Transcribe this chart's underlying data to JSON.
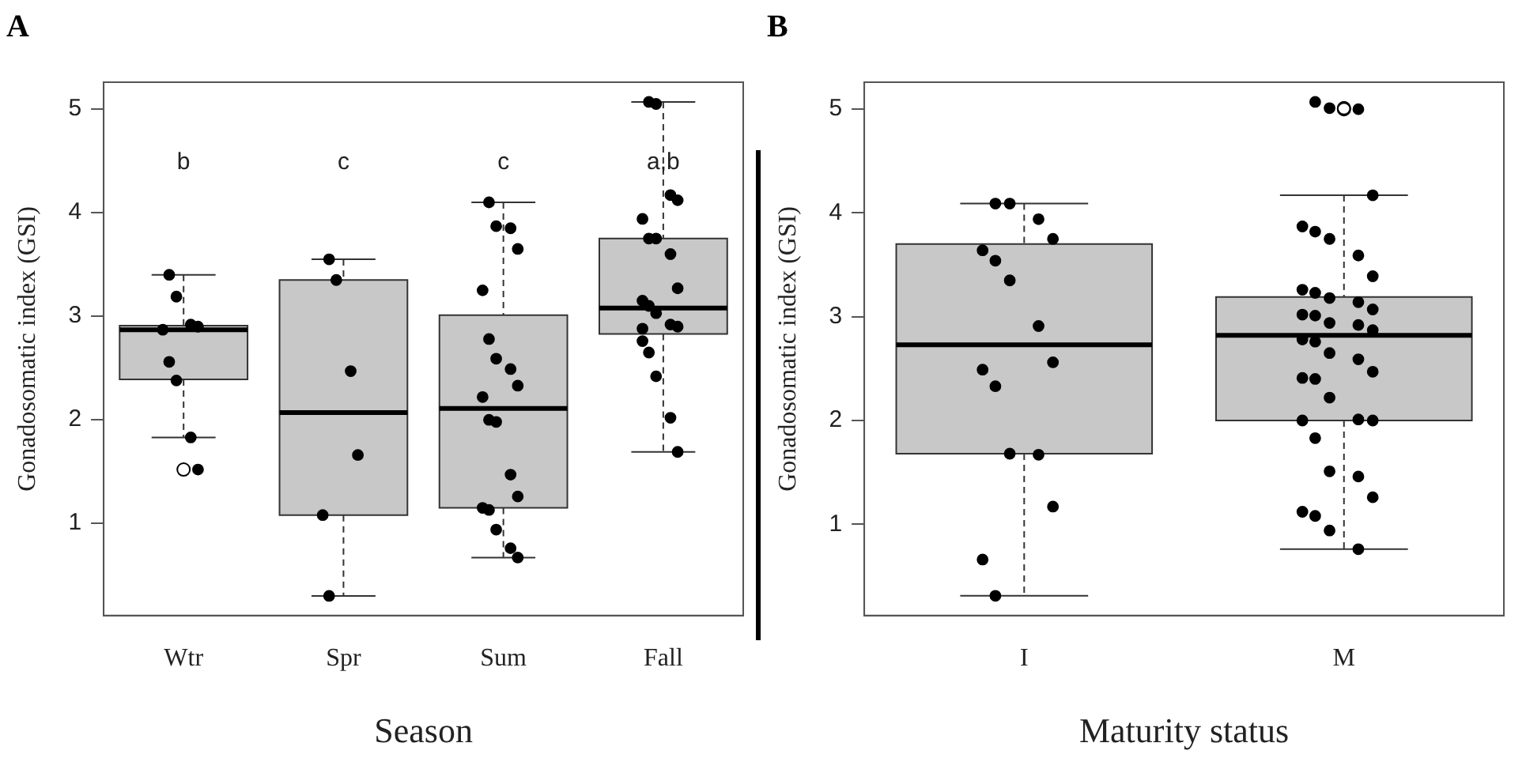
{
  "chart_data": [
    {
      "type": "box",
      "title": "A",
      "xlabel": "Season",
      "ylabel": "Gonadosomatic index (GSI)",
      "categories": [
        "Wtr",
        "Spr",
        "Sum",
        "Fall"
      ],
      "ylim": [
        0.11,
        5.26
      ],
      "yticks": [
        1,
        2,
        3,
        4,
        5
      ],
      "grid": false,
      "legend": false,
      "marker": "circle",
      "series": [
        {
          "type": "box",
          "color": "#c8c8c8",
          "boxes": [
            {
              "low": 1.83,
              "q1": 2.39,
              "median": 2.87,
              "q3": 2.91,
              "high": 3.4,
              "outliers": [
                1.52
              ]
            },
            {
              "low": 0.3,
              "q1": 1.08,
              "median": 2.07,
              "q3": 3.35,
              "high": 3.55
            },
            {
              "low": 0.67,
              "q1": 1.15,
              "median": 2.11,
              "q3": 3.01,
              "high": 4.1
            },
            {
              "low": 1.69,
              "q1": 2.83,
              "median": 3.08,
              "q3": 3.75,
              "high": 5.07
            }
          ]
        },
        {
          "type": "scatter",
          "color": "#000000",
          "x": [
            "Wtr",
            "Wtr",
            "Wtr",
            "Wtr",
            "Wtr",
            "Wtr",
            "Wtr",
            "Wtr",
            "Wtr",
            "Spr",
            "Spr",
            "Spr",
            "Spr",
            "Spr",
            "Spr",
            "Sum",
            "Sum",
            "Sum",
            "Sum",
            "Sum",
            "Sum",
            "Sum",
            "Sum",
            "Sum",
            "Sum",
            "Sum",
            "Sum",
            "Sum",
            "Sum",
            "Sum",
            "Sum",
            "Sum",
            "Sum",
            "Sum",
            "Fall",
            "Fall",
            "Fall",
            "Fall",
            "Fall",
            "Fall",
            "Fall",
            "Fall",
            "Fall",
            "Fall",
            "Fall",
            "Fall",
            "Fall",
            "Fall",
            "Fall",
            "Fall",
            "Fall",
            "Fall",
            "Fall",
            "Fall"
          ],
          "values": [
            3.4,
            3.19,
            2.92,
            2.9,
            2.87,
            2.56,
            2.38,
            1.83,
            1.52,
            3.55,
            3.35,
            2.47,
            1.66,
            1.08,
            0.3,
            4.1,
            3.87,
            3.85,
            3.65,
            3.25,
            2.78,
            2.59,
            2.49,
            2.33,
            2.22,
            2.0,
            1.98,
            1.47,
            1.26,
            1.15,
            1.13,
            0.94,
            0.76,
            0.67,
            5.07,
            5.05,
            4.17,
            4.12,
            3.94,
            3.75,
            3.75,
            3.6,
            3.27,
            3.15,
            3.1,
            3.03,
            2.92,
            2.9,
            2.76,
            2.65,
            2.42,
            2.02,
            1.69,
            2.88
          ]
        }
      ],
      "annotations": [
        "b",
        "c",
        "c",
        "a,b"
      ]
    },
    {
      "type": "box",
      "title": "B",
      "xlabel": "Maturity status",
      "ylabel": "Gonadosomatic index (GSI)",
      "categories": [
        "I",
        "M"
      ],
      "ylim": [
        0.12,
        5.26
      ],
      "yticks": [
        1,
        2,
        3,
        4,
        5
      ],
      "grid": false,
      "legend": false,
      "marker": "circle",
      "series": [
        {
          "type": "box",
          "color": "#c8c8c8",
          "boxes": [
            {
              "low": 0.31,
              "q1": 1.68,
              "median": 2.73,
              "q3": 3.7,
              "high": 4.09
            },
            {
              "low": 0.76,
              "q1": 2.0,
              "median": 2.82,
              "q3": 3.19,
              "high": 4.17,
              "outliers": [
                5.0,
                5.01
              ]
            }
          ]
        },
        {
          "type": "scatter",
          "color": "#000000",
          "x": [
            "I",
            "I",
            "I",
            "I",
            "I",
            "I",
            "I",
            "I",
            "I",
            "I",
            "I",
            "I",
            "I",
            "I",
            "I",
            "I",
            "M",
            "M",
            "M",
            "M",
            "M",
            "M",
            "M",
            "M",
            "M",
            "M",
            "M",
            "M",
            "M",
            "M",
            "M",
            "M",
            "M",
            "M",
            "M",
            "M",
            "M",
            "M",
            "M",
            "M",
            "M",
            "M",
            "M",
            "M",
            "M",
            "M",
            "M",
            "M",
            "M",
            "M",
            "M",
            "M",
            "M",
            "M"
          ],
          "values": [
            4.09,
            4.09,
            3.94,
            3.75,
            3.64,
            3.54,
            3.35,
            2.91,
            2.56,
            2.49,
            2.33,
            1.68,
            1.67,
            1.17,
            0.66,
            0.31,
            5.07,
            5.01,
            5.0,
            4.17,
            3.87,
            3.82,
            3.75,
            3.59,
            3.39,
            3.26,
            3.23,
            3.18,
            3.14,
            3.07,
            3.02,
            3.01,
            2.94,
            2.92,
            2.87,
            2.78,
            2.76,
            2.65,
            2.59,
            2.47,
            2.41,
            2.4,
            2.22,
            2.01,
            2.0,
            2.0,
            1.83,
            1.51,
            1.46,
            1.26,
            1.12,
            1.08,
            0.94,
            0.76
          ]
        }
      ]
    }
  ]
}
